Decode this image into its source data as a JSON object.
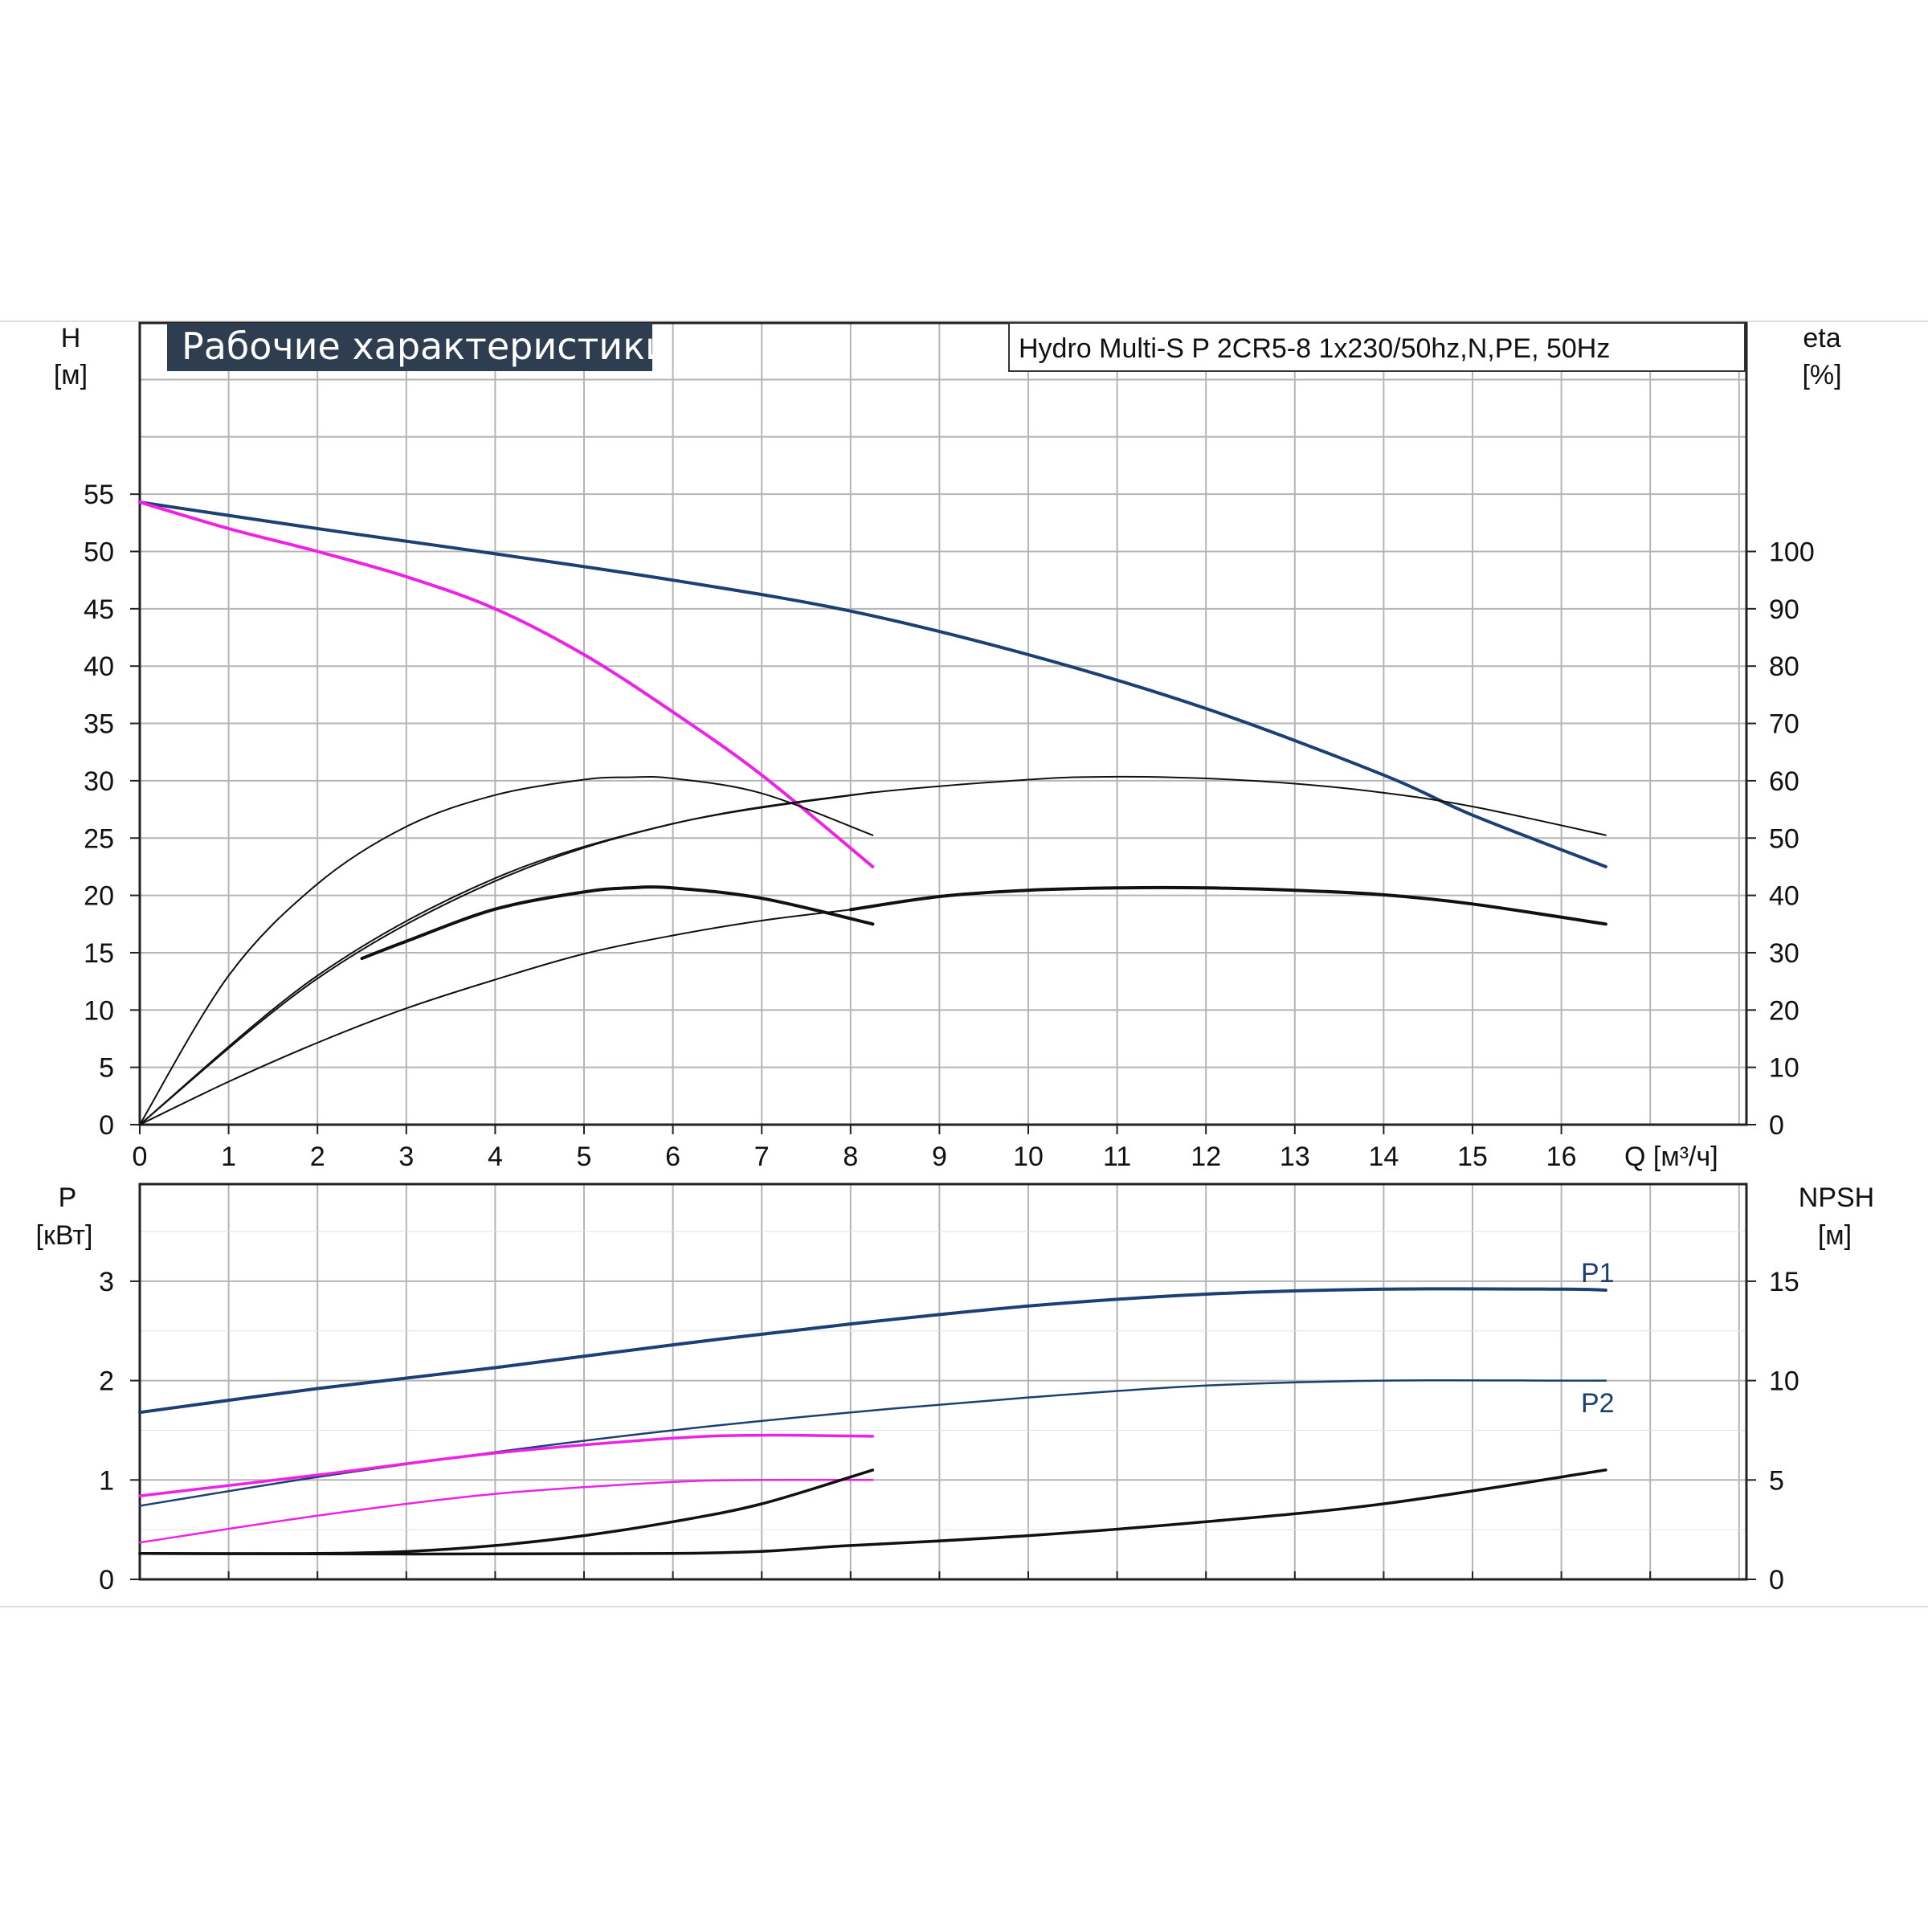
{
  "chart_title": "Рабочие характеристики",
  "model_label": "Hydro Multi-S P 2CR5-8 1x230/50hz,N,PE, 50Hz",
  "colors": {
    "pump_curve": "#1c3f74",
    "single_pump": "#ee22e6",
    "efficiency": "#111111",
    "grid": "#b5b5b5",
    "title_bg": "#2e3d4f"
  },
  "chart_data": [
    {
      "type": "line",
      "xlabel": "Q [м³/ч]",
      "ylabel_left_name": "H",
      "ylabel_left_unit": "[м]",
      "ylabel_right_name": "eta",
      "ylabel_right_unit": "[%]",
      "x_ticks": [
        "0",
        "1",
        "2",
        "3",
        "4",
        "5",
        "6",
        "7",
        "8",
        "9",
        "10",
        "11",
        "12",
        "13",
        "14",
        "15",
        "16"
      ],
      "y_left_ticks": [
        "0",
        "5",
        "10",
        "15",
        "20",
        "25",
        "30",
        "35",
        "40",
        "45",
        "50",
        "55"
      ],
      "y_right_ticks": [
        "0",
        "10",
        "20",
        "30",
        "40",
        "50",
        "60",
        "70",
        "80",
        "90",
        "100"
      ],
      "xlim": [
        0,
        18
      ],
      "ylim_left": [
        0,
        65
      ],
      "ylim_right": [
        0,
        130
      ],
      "grid": true,
      "series": [
        {
          "axis": "left",
          "color": "#1c3f74",
          "width": 4,
          "x": [
            0,
            2,
            4,
            6,
            8,
            10,
            12,
            14,
            15,
            16.5
          ],
          "y": [
            54.3,
            52,
            49.8,
            47.5,
            44.8,
            41,
            36.3,
            30.5,
            27,
            22.5
          ]
        },
        {
          "axis": "left",
          "color": "#ee22e6",
          "width": 4,
          "x": [
            0,
            1,
            2,
            3,
            4,
            5,
            6,
            7,
            8.25
          ],
          "y": [
            54.3,
            52,
            50,
            47.8,
            45,
            41,
            36,
            30.5,
            22.5
          ]
        },
        {
          "axis": "right",
          "color": "#111111",
          "width": 2,
          "x": [
            0,
            1,
            2,
            3,
            4,
            5,
            5.5,
            6,
            7,
            8.25
          ],
          "y": [
            0,
            26,
            42,
            52,
            57.5,
            60.2,
            60.6,
            60.4,
            57.8,
            50.5
          ]
        },
        {
          "axis": "right",
          "color": "#111111",
          "width": 2,
          "x": [
            0,
            2,
            4,
            6,
            8,
            10,
            11,
            12,
            13,
            14,
            15,
            16.5
          ],
          "y": [
            0,
            26,
            43,
            52.5,
            57.5,
            60.2,
            60.7,
            60.4,
            59.5,
            57.9,
            55.5,
            50.5
          ]
        },
        {
          "axis": "right",
          "color": "#111111",
          "width": 2,
          "x": [
            0,
            2,
            4,
            6,
            8.25
          ],
          "y": [
            0,
            25.5,
            42.5,
            52.5,
            58
          ]
        },
        {
          "axis": "right",
          "color": "#111111",
          "width": 4,
          "x": [
            2.5,
            3,
            4,
            5,
            5.5,
            6,
            7,
            8.25
          ],
          "y": [
            29,
            32,
            37.6,
            40.6,
            41.3,
            41.3,
            39.5,
            35
          ]
        },
        {
          "axis": "right",
          "color": "#111111",
          "width": 2,
          "x": [
            0,
            1,
            2,
            3,
            4,
            5,
            6,
            7,
            8
          ],
          "y": [
            0,
            7.5,
            14.3,
            20.3,
            25.3,
            29.8,
            33,
            35.6,
            37.5
          ]
        },
        {
          "axis": "right",
          "color": "#111111",
          "width": 4,
          "x": [
            8,
            9,
            10,
            11,
            12,
            13,
            14,
            15,
            16.5
          ],
          "y": [
            37.5,
            39.8,
            40.9,
            41.3,
            41.3,
            40.9,
            40.1,
            38.5,
            35
          ]
        }
      ]
    },
    {
      "type": "line",
      "ylabel_left_name": "P",
      "ylabel_left_unit": "[кВт]",
      "ylabel_right_name": "NPSH",
      "ylabel_right_unit": "[м]",
      "y_left_ticks": [
        "0",
        "1",
        "2",
        "3"
      ],
      "y_right_ticks": [
        "0",
        "5",
        "10",
        "15"
      ],
      "xlim": [
        0,
        18
      ],
      "ylim_left": [
        0,
        3.0
      ],
      "ylim_right": [
        0,
        15
      ],
      "grid": true,
      "series": [
        {
          "name": "P1",
          "axis": "left",
          "color": "#1c3f74",
          "width": 4,
          "x": [
            0,
            2,
            4,
            6,
            8,
            10,
            12,
            14,
            16,
            16.5
          ],
          "y": [
            1.68,
            1.92,
            2.13,
            2.36,
            2.57,
            2.75,
            2.87,
            2.92,
            2.92,
            2.91
          ]
        },
        {
          "name": "P2",
          "axis": "left",
          "color": "#1c3f74",
          "width": 2.5,
          "x": [
            0,
            2,
            4,
            6,
            8,
            10,
            12,
            14,
            16,
            16.5
          ],
          "y": [
            0.74,
            1.03,
            1.28,
            1.5,
            1.68,
            1.83,
            1.95,
            2.0,
            2.0,
            2.0
          ]
        },
        {
          "axis": "left",
          "color": "#ee22e6",
          "width": 3.5,
          "x": [
            0,
            2,
            4,
            6,
            7,
            8.25
          ],
          "y": [
            0.84,
            1.05,
            1.27,
            1.42,
            1.45,
            1.44
          ]
        },
        {
          "axis": "left",
          "color": "#ee22e6",
          "width": 2.5,
          "x": [
            0,
            2,
            4,
            6,
            7,
            8.25
          ],
          "y": [
            0.37,
            0.64,
            0.86,
            0.98,
            1.0,
            1.0
          ]
        },
        {
          "axis": "right",
          "color": "#111111",
          "width": 3.5,
          "x": [
            0,
            2,
            3,
            4,
            5,
            6,
            7,
            8.25
          ],
          "y": [
            1.3,
            1.3,
            1.4,
            1.7,
            2.2,
            2.9,
            3.8,
            5.5
          ]
        },
        {
          "axis": "right",
          "color": "#111111",
          "width": 3.5,
          "x": [
            0,
            6,
            8,
            10,
            12,
            14,
            16.5
          ],
          "y": [
            1.3,
            1.3,
            1.7,
            2.2,
            2.9,
            3.8,
            5.5
          ]
        }
      ]
    }
  ]
}
